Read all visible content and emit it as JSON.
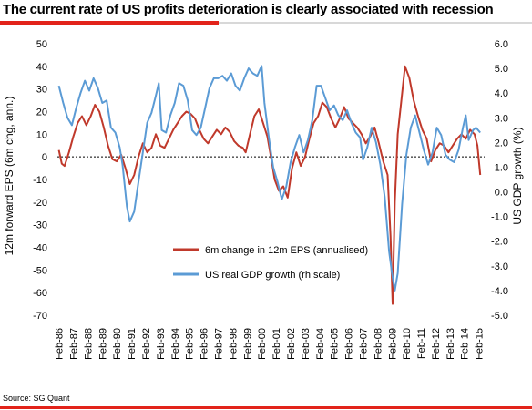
{
  "header": {
    "title": "The current rate of US profits deterioration is clearly associated with recession"
  },
  "footer": {
    "source": "Source: SG Quant"
  },
  "colors": {
    "eps": "#c0392b",
    "gdp": "#5b9bd5",
    "accent": "#e2231a"
  },
  "chart_data": {
    "type": "line",
    "title": "The current rate of US profits deterioration is clearly associated with recession",
    "ylabel_left": "12m forward EPS (6m chg, ann.)",
    "ylabel_right": "US GDP growth (%)",
    "y_left": {
      "min": -70,
      "max": 50,
      "step": 10
    },
    "y_right": {
      "min": -5.0,
      "max": 6.0,
      "step": 1.0
    },
    "x_range": [
      1986,
      2015.5
    ],
    "x_ticks": [
      "Feb-86",
      "Feb-87",
      "Feb-88",
      "Feb-89",
      "Feb-90",
      "Feb-91",
      "Feb-92",
      "Feb-93",
      "Feb-94",
      "Feb-95",
      "Feb-96",
      "Feb-97",
      "Feb-98",
      "Feb-99",
      "Feb-00",
      "Feb-01",
      "Feb-02",
      "Feb-03",
      "Feb-04",
      "Feb-05",
      "Feb-06",
      "Feb-07",
      "Feb-08",
      "Feb-09",
      "Feb-10",
      "Feb-11",
      "Feb-12",
      "Feb-13",
      "Feb-14",
      "Feb-15"
    ],
    "legend_position": "lower-left",
    "grid": false,
    "zero_line": "dashed",
    "series": [
      {
        "name": "6m change in 12m EPS (annualised)",
        "axis": "left",
        "color": "#c0392b",
        "points": [
          [
            1986.1,
            3
          ],
          [
            1986.3,
            -3
          ],
          [
            1986.5,
            -4
          ],
          [
            1986.8,
            2
          ],
          [
            1987.1,
            9
          ],
          [
            1987.4,
            15
          ],
          [
            1987.7,
            18
          ],
          [
            1988.0,
            14
          ],
          [
            1988.3,
            18
          ],
          [
            1988.6,
            23
          ],
          [
            1988.9,
            20
          ],
          [
            1989.2,
            13
          ],
          [
            1989.5,
            5
          ],
          [
            1989.8,
            -1
          ],
          [
            1990.1,
            -2
          ],
          [
            1990.4,
            1
          ],
          [
            1990.7,
            -5
          ],
          [
            1991.0,
            -12
          ],
          [
            1991.3,
            -8
          ],
          [
            1991.6,
            0
          ],
          [
            1991.9,
            6
          ],
          [
            1992.2,
            2
          ],
          [
            1992.5,
            4
          ],
          [
            1992.8,
            10
          ],
          [
            1993.1,
            5
          ],
          [
            1993.4,
            4
          ],
          [
            1993.7,
            8
          ],
          [
            1994.0,
            12
          ],
          [
            1994.3,
            15
          ],
          [
            1994.6,
            18
          ],
          [
            1994.9,
            20
          ],
          [
            1995.2,
            19
          ],
          [
            1995.5,
            17
          ],
          [
            1995.8,
            12
          ],
          [
            1996.1,
            8
          ],
          [
            1996.4,
            6
          ],
          [
            1996.7,
            9
          ],
          [
            1997.0,
            12
          ],
          [
            1997.3,
            10
          ],
          [
            1997.6,
            13
          ],
          [
            1997.9,
            11
          ],
          [
            1998.2,
            7
          ],
          [
            1998.5,
            5
          ],
          [
            1998.8,
            4
          ],
          [
            1999.0,
            2
          ],
          [
            1999.3,
            10
          ],
          [
            1999.6,
            18
          ],
          [
            1999.9,
            21
          ],
          [
            2000.2,
            15
          ],
          [
            2000.5,
            9
          ],
          [
            2000.8,
            -2
          ],
          [
            2001.0,
            -10
          ],
          [
            2001.3,
            -15
          ],
          [
            2001.6,
            -13
          ],
          [
            2001.9,
            -18
          ],
          [
            2002.2,
            -5
          ],
          [
            2002.5,
            2
          ],
          [
            2002.8,
            -4
          ],
          [
            2003.1,
            0
          ],
          [
            2003.4,
            8
          ],
          [
            2003.7,
            15
          ],
          [
            2004.0,
            18
          ],
          [
            2004.3,
            24
          ],
          [
            2004.6,
            22
          ],
          [
            2004.9,
            17
          ],
          [
            2005.2,
            13
          ],
          [
            2005.5,
            17
          ],
          [
            2005.8,
            22
          ],
          [
            2006.1,
            17
          ],
          [
            2006.4,
            15
          ],
          [
            2006.7,
            13
          ],
          [
            2007.0,
            10
          ],
          [
            2007.3,
            6
          ],
          [
            2007.6,
            9
          ],
          [
            2007.9,
            13
          ],
          [
            2008.2,
            6
          ],
          [
            2008.5,
            -2
          ],
          [
            2008.8,
            -8
          ],
          [
            2009.0,
            -35
          ],
          [
            2009.15,
            -65
          ],
          [
            2009.3,
            -20
          ],
          [
            2009.5,
            10
          ],
          [
            2009.75,
            25
          ],
          [
            2010.0,
            40
          ],
          [
            2010.3,
            35
          ],
          [
            2010.6,
            25
          ],
          [
            2010.9,
            18
          ],
          [
            2011.2,
            12
          ],
          [
            2011.5,
            8
          ],
          [
            2011.8,
            -2
          ],
          [
            2012.1,
            3
          ],
          [
            2012.4,
            6
          ],
          [
            2012.7,
            5
          ],
          [
            2013.0,
            2
          ],
          [
            2013.3,
            5
          ],
          [
            2013.6,
            8
          ],
          [
            2013.9,
            10
          ],
          [
            2014.2,
            8
          ],
          [
            2014.5,
            12
          ],
          [
            2014.8,
            10
          ],
          [
            2015.0,
            5
          ],
          [
            2015.2,
            -8
          ]
        ]
      },
      {
        "name": "US real GDP growth (rh scale)",
        "axis": "right",
        "color": "#5b9bd5",
        "points": [
          [
            1986.1,
            4.3
          ],
          [
            1986.4,
            3.6
          ],
          [
            1986.7,
            3.0
          ],
          [
            1987.0,
            2.7
          ],
          [
            1987.3,
            3.4
          ],
          [
            1987.6,
            4.0
          ],
          [
            1987.9,
            4.5
          ],
          [
            1988.2,
            4.1
          ],
          [
            1988.5,
            4.6
          ],
          [
            1988.8,
            4.2
          ],
          [
            1989.1,
            3.6
          ],
          [
            1989.4,
            3.7
          ],
          [
            1989.7,
            2.6
          ],
          [
            1990.0,
            2.4
          ],
          [
            1990.3,
            1.8
          ],
          [
            1990.5,
            1.1
          ],
          [
            1990.8,
            -0.6
          ],
          [
            1991.0,
            -1.2
          ],
          [
            1991.3,
            -0.8
          ],
          [
            1991.6,
            0.4
          ],
          [
            1991.9,
            1.6
          ],
          [
            1992.2,
            2.8
          ],
          [
            1992.5,
            3.2
          ],
          [
            1992.8,
            3.9
          ],
          [
            1993.0,
            4.4
          ],
          [
            1993.2,
            2.5
          ],
          [
            1993.5,
            2.4
          ],
          [
            1993.8,
            3.1
          ],
          [
            1994.1,
            3.6
          ],
          [
            1994.4,
            4.4
          ],
          [
            1994.7,
            4.3
          ],
          [
            1995.0,
            3.7
          ],
          [
            1995.3,
            2.5
          ],
          [
            1995.6,
            2.3
          ],
          [
            1995.9,
            2.6
          ],
          [
            1996.2,
            3.4
          ],
          [
            1996.5,
            4.2
          ],
          [
            1996.8,
            4.6
          ],
          [
            1997.1,
            4.6
          ],
          [
            1997.4,
            4.7
          ],
          [
            1997.7,
            4.5
          ],
          [
            1998.0,
            4.8
          ],
          [
            1998.3,
            4.3
          ],
          [
            1998.6,
            4.1
          ],
          [
            1998.9,
            4.6
          ],
          [
            1999.2,
            5.0
          ],
          [
            1999.5,
            4.8
          ],
          [
            1999.8,
            4.7
          ],
          [
            2000.1,
            5.1
          ],
          [
            2000.3,
            3.6
          ],
          [
            2000.6,
            2.2
          ],
          [
            2000.9,
            1.0
          ],
          [
            2001.2,
            0.4
          ],
          [
            2001.5,
            -0.3
          ],
          [
            2001.8,
            0.2
          ],
          [
            2002.1,
            1.2
          ],
          [
            2002.4,
            1.8
          ],
          [
            2002.7,
            2.3
          ],
          [
            2003.0,
            1.6
          ],
          [
            2003.3,
            2.1
          ],
          [
            2003.6,
            2.9
          ],
          [
            2003.9,
            4.3
          ],
          [
            2004.2,
            4.3
          ],
          [
            2004.5,
            3.8
          ],
          [
            2004.8,
            3.3
          ],
          [
            2005.1,
            3.5
          ],
          [
            2005.4,
            3.1
          ],
          [
            2005.7,
            2.9
          ],
          [
            2006.0,
            3.3
          ],
          [
            2006.3,
            2.8
          ],
          [
            2006.6,
            2.4
          ],
          [
            2006.9,
            2.2
          ],
          [
            2007.1,
            1.3
          ],
          [
            2007.4,
            1.8
          ],
          [
            2007.7,
            2.6
          ],
          [
            2008.0,
            2.0
          ],
          [
            2008.3,
            1.1
          ],
          [
            2008.6,
            -0.2
          ],
          [
            2008.9,
            -2.4
          ],
          [
            2009.1,
            -3.3
          ],
          [
            2009.3,
            -4.0
          ],
          [
            2009.5,
            -3.3
          ],
          [
            2009.8,
            -0.5
          ],
          [
            2010.1,
            1.5
          ],
          [
            2010.4,
            2.6
          ],
          [
            2010.7,
            3.1
          ],
          [
            2011.0,
            2.4
          ],
          [
            2011.3,
            1.7
          ],
          [
            2011.6,
            1.1
          ],
          [
            2011.9,
            1.6
          ],
          [
            2012.2,
            2.6
          ],
          [
            2012.5,
            2.3
          ],
          [
            2012.8,
            1.5
          ],
          [
            2013.1,
            1.3
          ],
          [
            2013.4,
            1.2
          ],
          [
            2013.7,
            1.7
          ],
          [
            2014.0,
            2.6
          ],
          [
            2014.2,
            3.1
          ],
          [
            2014.4,
            2.1
          ],
          [
            2014.7,
            2.5
          ],
          [
            2014.9,
            2.6
          ],
          [
            2015.2,
            2.4
          ]
        ]
      }
    ]
  }
}
